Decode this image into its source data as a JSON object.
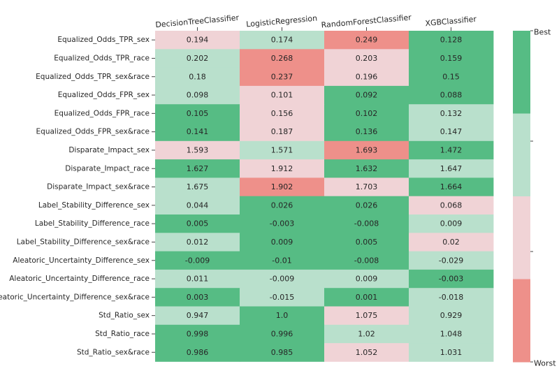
{
  "chart_data": {
    "type": "heatmap",
    "columns": [
      "DecisionTreeClassifier",
      "LogisticRegression",
      "RandomForestClassifier",
      "XGBClassifier"
    ],
    "rows": [
      "Equalized_Odds_TPR_sex",
      "Equalized_Odds_TPR_race",
      "Equalized_Odds_TPR_sex&race",
      "Equalized_Odds_FPR_sex",
      "Equalized_Odds_FPR_race",
      "Equalized_Odds_FPR_sex&race",
      "Disparate_Impact_sex",
      "Disparate_Impact_race",
      "Disparate_Impact_sex&race",
      "Label_Stability_Difference_sex",
      "Label_Stability_Difference_race",
      "Label_Stability_Difference_sex&race",
      "Aleatoric_Uncertainty_Difference_sex",
      "Aleatoric_Uncertainty_Difference_race",
      "Aleatoric_Uncertainty_Difference_sex&race",
      "Std_Ratio_sex",
      "Std_Ratio_race",
      "Std_Ratio_sex&race"
    ],
    "values": [
      [
        "0.194",
        "0.174",
        "0.249",
        "0.128"
      ],
      [
        "0.202",
        "0.268",
        "0.203",
        "0.159"
      ],
      [
        "0.18",
        "0.237",
        "0.196",
        "0.15"
      ],
      [
        "0.098",
        "0.101",
        "0.092",
        "0.088"
      ],
      [
        "0.105",
        "0.156",
        "0.102",
        "0.132"
      ],
      [
        "0.141",
        "0.187",
        "0.136",
        "0.147"
      ],
      [
        "1.593",
        "1.571",
        "1.693",
        "1.472"
      ],
      [
        "1.627",
        "1.912",
        "1.632",
        "1.647"
      ],
      [
        "1.675",
        "1.902",
        "1.703",
        "1.664"
      ],
      [
        "0.044",
        "0.026",
        "0.026",
        "0.068"
      ],
      [
        "0.005",
        "-0.003",
        "-0.008",
        "0.009"
      ],
      [
        "0.012",
        "0.009",
        "0.005",
        "0.02"
      ],
      [
        "-0.009",
        "-0.01",
        "-0.008",
        "-0.029"
      ],
      [
        "0.011",
        "-0.009",
        "0.009",
        "-0.003"
      ],
      [
        "0.003",
        "-0.015",
        "0.001",
        "-0.018"
      ],
      [
        "0.947",
        "1.0",
        "1.075",
        "0.929"
      ],
      [
        "0.998",
        "0.996",
        "1.02",
        "1.048"
      ],
      [
        "0.986",
        "0.985",
        "1.052",
        "1.031"
      ]
    ],
    "ranks": [
      [
        3,
        2,
        4,
        1
      ],
      [
        2,
        4,
        3,
        1
      ],
      [
        2,
        4,
        3,
        1
      ],
      [
        2,
        3,
        1,
        1
      ],
      [
        1,
        3,
        1,
        2
      ],
      [
        1,
        3,
        1,
        2
      ],
      [
        3,
        2,
        4,
        1
      ],
      [
        1,
        3,
        1,
        2
      ],
      [
        2,
        4,
        3,
        1
      ],
      [
        2,
        1,
        1,
        3
      ],
      [
        1,
        1,
        1,
        2
      ],
      [
        2,
        1,
        1,
        3
      ],
      [
        1,
        1,
        1,
        2
      ],
      [
        2,
        2,
        2,
        1
      ],
      [
        1,
        2,
        1,
        2
      ],
      [
        2,
        1,
        3,
        2
      ],
      [
        1,
        1,
        2,
        2
      ],
      [
        1,
        1,
        3,
        2
      ]
    ],
    "rank_colors": {
      "1": "#56bc84",
      "2": "#b9e0cc",
      "3": "#f0d3d6",
      "4": "#ee908a"
    },
    "colorbar": {
      "colors": [
        "#56bc84",
        "#b9e0cc",
        "#f0d3d6",
        "#ee908a"
      ],
      "top_label": "Best",
      "bottom_label": "Worst"
    },
    "text_color": "#262626"
  }
}
